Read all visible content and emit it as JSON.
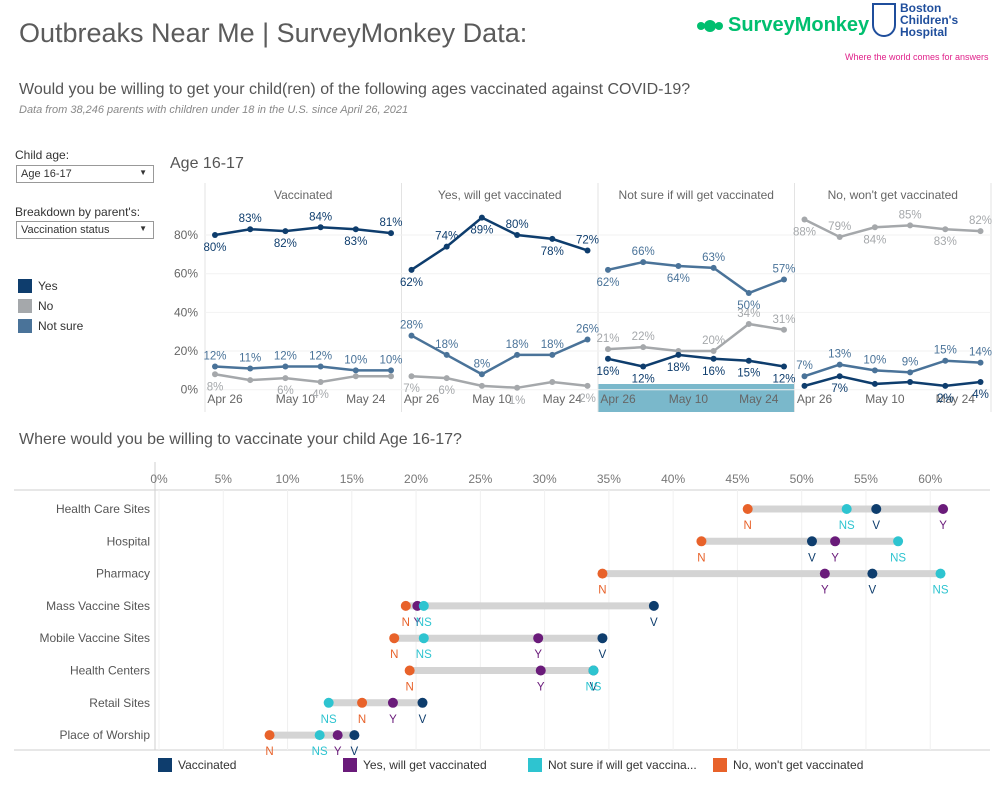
{
  "header": {
    "title": "Outbreaks Near Me | SurveyMonkey Data:",
    "logo_surveymonkey": "SurveyMonkey",
    "logo_bch": "Boston\nChildren's\nHospital",
    "tagline": "Where the world comes for answers",
    "question": "Would you be willing to get your child(ren) of the following ages vaccinated against COVID-19?",
    "subtitle": "Data from 38,246 parents with children under 18 in the U.S. since April 26, 2021"
  },
  "filters": {
    "child_age_label": "Child age:",
    "child_age_value": "Age 16-17",
    "breakdown_label": "Breakdown by parent's:",
    "breakdown_value": "Vaccination status"
  },
  "legend": {
    "items": [
      {
        "label": "Yes",
        "color": "#0e3d6d"
      },
      {
        "label": "No",
        "color": "#a5a8ab"
      },
      {
        "label": "Not sure",
        "color": "#4a7399"
      }
    ]
  },
  "chart_data": [
    {
      "type": "line",
      "title": "Age 16-17",
      "x_ticks": [
        "Apr 26",
        "May 10",
        "May 24"
      ],
      "y_ticks": [
        "0%",
        "20%",
        "40%",
        "60%",
        "80%"
      ],
      "ylim": [
        0,
        100
      ],
      "colors": {
        "Yes": "#0e3d6d",
        "No": "#a5a8ab",
        "Not sure": "#4a7399"
      },
      "panels": [
        {
          "name": "Vaccinated",
          "series": [
            {
              "name": "Yes",
              "values": [
                80,
                83,
                82,
                84,
                83,
                81
              ],
              "labels": [
                "80%",
                "83%",
                "82%",
                "84%",
                "83%",
                "81%"
              ]
            },
            {
              "name": "Not sure",
              "values": [
                12,
                11,
                12,
                12,
                10,
                10
              ],
              "labels": [
                "12%",
                "11%",
                "12%",
                "12%",
                "10%",
                "10%"
              ]
            },
            {
              "name": "No",
              "values": [
                8,
                5,
                6,
                4,
                7,
                7
              ],
              "labels": [
                "8%",
                "",
                "6%",
                "4%",
                "",
                ""
              ]
            }
          ]
        },
        {
          "name": "Yes, will get vaccinated",
          "series": [
            {
              "name": "Yes",
              "values": [
                62,
                74,
                89,
                80,
                78,
                72
              ],
              "labels": [
                "62%",
                "74%",
                "89%",
                "80%",
                "78%",
                "72%"
              ]
            },
            {
              "name": "Not sure",
              "values": [
                28,
                18,
                8,
                18,
                18,
                26
              ],
              "labels": [
                "28%",
                "18%",
                "8%",
                "18%",
                "18%",
                "26%"
              ]
            },
            {
              "name": "No",
              "values": [
                7,
                6,
                2,
                1,
                4,
                2
              ],
              "labels": [
                "7%",
                "6%",
                "",
                "1%",
                "",
                "2%"
              ]
            }
          ]
        },
        {
          "name": "Not sure if will get vaccinated",
          "series": [
            {
              "name": "Not sure",
              "values": [
                62,
                66,
                64,
                63,
                50,
                57
              ],
              "labels": [
                "62%",
                "66%",
                "64%",
                "63%",
                "50%",
                "57%"
              ]
            },
            {
              "name": "No",
              "values": [
                21,
                22,
                20,
                20,
                34,
                31
              ],
              "labels": [
                "21%",
                "22%",
                "",
                "20%",
                "34%",
                "31%"
              ]
            },
            {
              "name": "Yes",
              "values": [
                16,
                12,
                18,
                16,
                15,
                12
              ],
              "labels": [
                "16%",
                "12%",
                "18%",
                "16%",
                "15%",
                "12%"
              ]
            }
          ]
        },
        {
          "name": "No, won't get vaccinated",
          "series": [
            {
              "name": "No",
              "values": [
                88,
                79,
                84,
                85,
                83,
                82
              ],
              "labels": [
                "88%",
                "79%",
                "84%",
                "85%",
                "83%",
                "82%"
              ]
            },
            {
              "name": "Not sure",
              "values": [
                7,
                13,
                10,
                9,
                15,
                14
              ],
              "labels": [
                "7%",
                "13%",
                "10%",
                "9%",
                "15%",
                "14%"
              ]
            },
            {
              "name": "Yes",
              "values": [
                2,
                7,
                3,
                4,
                2,
                4
              ],
              "labels": [
                "",
                "7%",
                "",
                "",
                "2%",
                "4%"
              ]
            }
          ]
        }
      ]
    },
    {
      "type": "dumbbell",
      "title": "Where would you be willing to vaccinate your child Age 16-17?",
      "x_ticks": [
        "0%",
        "5%",
        "10%",
        "15%",
        "20%",
        "25%",
        "30%",
        "35%",
        "40%",
        "45%",
        "50%",
        "55%",
        "60%"
      ],
      "xlim": [
        0,
        64
      ],
      "categories": [
        "Health Care Sites",
        "Hospital",
        "Pharmacy",
        "Mass Vaccine Sites",
        "Mobile Vaccine Sites",
        "Health Centers",
        "Retail Sites",
        "Place of Worship"
      ],
      "series": [
        {
          "name": "Vaccinated",
          "code": "V",
          "color": "#0e3d6d",
          "values": [
            55.8,
            50.8,
            55.5,
            38.5,
            34.5,
            33.8,
            20.5,
            15.2
          ]
        },
        {
          "name": "Yes, will get vaccinated",
          "code": "Y",
          "color": "#6a1b7a",
          "values": [
            61.0,
            52.6,
            51.8,
            20.1,
            29.5,
            29.7,
            18.2,
            13.9
          ]
        },
        {
          "name": "Not sure if will get vaccina...",
          "code": "NS",
          "color": "#2ec4d0",
          "values": [
            53.5,
            57.5,
            60.8,
            20.6,
            20.6,
            33.8,
            13.2,
            12.5
          ]
        },
        {
          "name": "No, won't get vaccinated",
          "code": "N",
          "color": "#e8622a",
          "values": [
            45.8,
            42.2,
            34.5,
            19.2,
            18.3,
            19.5,
            15.8,
            8.6
          ]
        }
      ]
    }
  ]
}
